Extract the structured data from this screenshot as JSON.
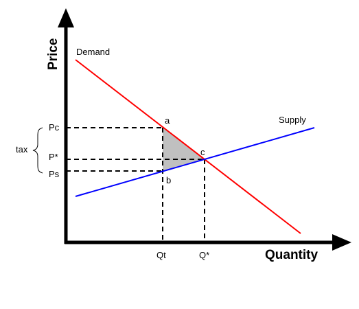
{
  "diagram": {
    "axes": {
      "y_title": "Price",
      "x_title": "Quantity"
    },
    "curves": {
      "demand": {
        "label": "Demand",
        "color": "#ff0000"
      },
      "supply": {
        "label": "Supply",
        "color": "#0000ff"
      }
    },
    "price_labels": {
      "pc": "Pc",
      "p_star": "P*",
      "ps": "Ps"
    },
    "quantity_labels": {
      "qt": "Qt",
      "q_star": "Q*"
    },
    "points": {
      "a": "a",
      "b": "b",
      "c": "c"
    },
    "tax_label": "tax",
    "deadweight_fill": "#c0c0c0"
  }
}
